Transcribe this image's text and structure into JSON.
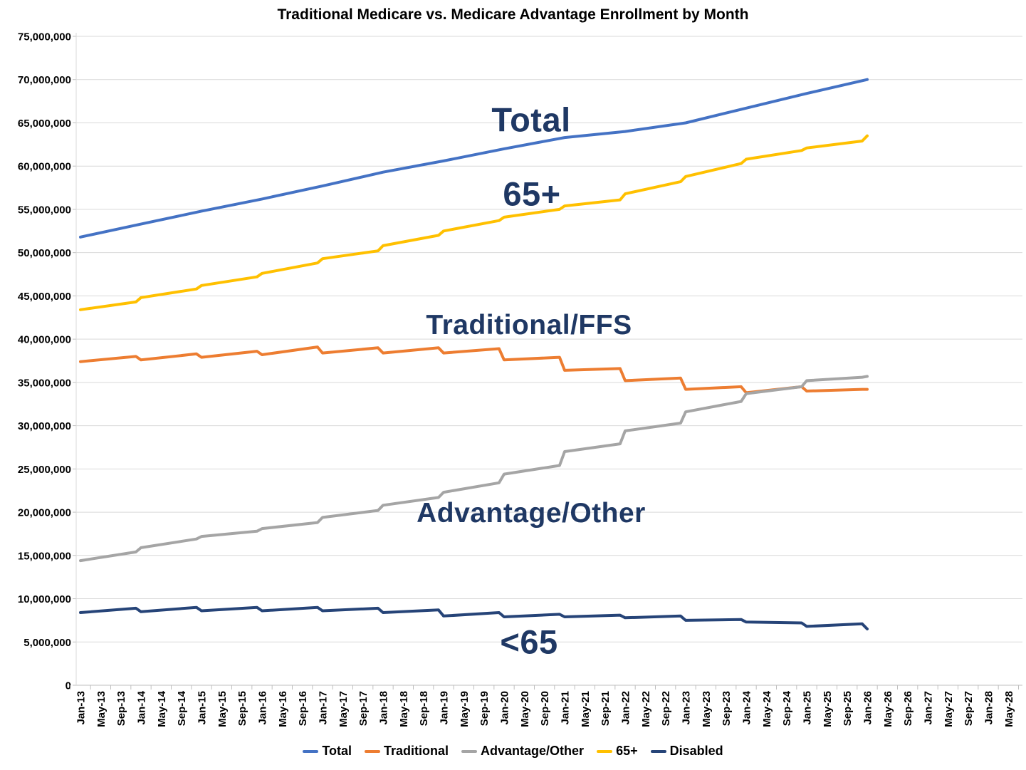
{
  "title": "Traditional Medicare vs. Medicare Advantage Enrollment by Month",
  "annotations": {
    "total": "Total",
    "age65": "65+",
    "traditional": "Traditional/FFS",
    "advantage": "Advantage/Other",
    "under65": "<65"
  },
  "legend": {
    "position": "bottom-center",
    "items": [
      {
        "id": "total",
        "label": "Total",
        "color": "#4472C4"
      },
      {
        "id": "traditional",
        "label": "Traditional",
        "color": "#ED7D31"
      },
      {
        "id": "advantage_other",
        "label": "Advantage/Other",
        "color": "#A5A5A5"
      },
      {
        "id": "age65",
        "label": "65+",
        "color": "#FFC000"
      },
      {
        "id": "disabled",
        "label": "Disabled",
        "color": "#264478"
      }
    ]
  },
  "chart_data": {
    "type": "line",
    "title": "Traditional Medicare vs. Medicare Advantage Enrollment by Month",
    "xlabel": "",
    "ylabel": "",
    "unit": "enrollees (values in millions)",
    "ylim": [
      0,
      75000000
    ],
    "grid": "horizontal",
    "x_axis_note": "monthly data from Jan-13 through Jan-26; axis labeled every 4 months out to May-28",
    "y_axis": {
      "ticks": [
        {
          "value": 0,
          "label": "0"
        },
        {
          "value": 5000000,
          "label": "5,000,000"
        },
        {
          "value": 10000000,
          "label": "10,000,000"
        },
        {
          "value": 15000000,
          "label": "15,000,000"
        },
        {
          "value": 20000000,
          "label": "20,000,000"
        },
        {
          "value": 25000000,
          "label": "25,000,000"
        },
        {
          "value": 30000000,
          "label": "30,000,000"
        },
        {
          "value": 35000000,
          "label": "35,000,000"
        },
        {
          "value": 40000000,
          "label": "40,000,000"
        },
        {
          "value": 45000000,
          "label": "45,000,000"
        },
        {
          "value": 50000000,
          "label": "50,000,000"
        },
        {
          "value": 55000000,
          "label": "55,000,000"
        },
        {
          "value": 60000000,
          "label": "60,000,000"
        },
        {
          "value": 65000000,
          "label": "65,000,000"
        },
        {
          "value": 70000000,
          "label": "70,000,000"
        },
        {
          "value": 75000000,
          "label": "75,000,000"
        }
      ]
    },
    "x_tick_labels": [
      "Jan-13",
      "May-13",
      "Sep-13",
      "Jan-14",
      "May-14",
      "Sep-14",
      "Jan-15",
      "May-15",
      "Sep-15",
      "Jan-16",
      "May-16",
      "Sep-16",
      "Jan-17",
      "May-17",
      "Sep-17",
      "Jan-18",
      "May-18",
      "Sep-18",
      "Jan-19",
      "May-19",
      "Sep-19",
      "Jan-20",
      "May-20",
      "Sep-20",
      "Jan-21",
      "May-21",
      "Sep-21",
      "Jan-22",
      "May-22",
      "Sep-22",
      "Jan-23",
      "May-23",
      "Sep-23",
      "Jan-24",
      "May-24",
      "Sep-24",
      "Jan-25",
      "May-25",
      "Sep-25",
      "Jan-26",
      "May-26",
      "Sep-26",
      "Jan-27",
      "May-27",
      "Sep-27",
      "Jan-28",
      "May-28"
    ],
    "series": [
      {
        "id": "total",
        "name": "Total",
        "color": "#4472C4",
        "points": [
          [
            "Jan-13",
            51.8
          ],
          [
            "Jan-14",
            53.3
          ],
          [
            "Jan-15",
            54.8
          ],
          [
            "Jan-16",
            56.2
          ],
          [
            "Jan-17",
            57.7
          ],
          [
            "Jan-18",
            59.3
          ],
          [
            "Jan-19",
            60.6
          ],
          [
            "Jan-20",
            62.0
          ],
          [
            "Jan-21",
            63.3
          ],
          [
            "Jan-22",
            64.0
          ],
          [
            "Jan-23",
            65.0
          ],
          [
            "Jan-24",
            66.7
          ],
          [
            "Jan-25",
            68.4
          ],
          [
            "Jan-26",
            70.0
          ]
        ]
      },
      {
        "id": "traditional",
        "name": "Traditional",
        "color": "#ED7D31",
        "points": [
          [
            "Jan-13",
            37.4
          ],
          [
            "Dec-13",
            38.0
          ],
          [
            "Jan-14",
            37.6
          ],
          [
            "Dec-14",
            38.3
          ],
          [
            "Jan-15",
            37.9
          ],
          [
            "Dec-15",
            38.6
          ],
          [
            "Jan-16",
            38.2
          ],
          [
            "Dec-16",
            39.1
          ],
          [
            "Jan-17",
            38.4
          ],
          [
            "Dec-17",
            39.0
          ],
          [
            "Jan-18",
            38.4
          ],
          [
            "Dec-18",
            39.0
          ],
          [
            "Jan-19",
            38.4
          ],
          [
            "Dec-19",
            38.9
          ],
          [
            "Jan-20",
            37.6
          ],
          [
            "Dec-20",
            37.9
          ],
          [
            "Jan-21",
            36.4
          ],
          [
            "Dec-21",
            36.6
          ],
          [
            "Jan-22",
            35.2
          ],
          [
            "Dec-22",
            35.5
          ],
          [
            "Jan-23",
            34.2
          ],
          [
            "Dec-23",
            34.5
          ],
          [
            "Jan-24",
            33.8
          ],
          [
            "Dec-24",
            34.5
          ],
          [
            "Jan-25",
            34.0
          ],
          [
            "Dec-25",
            34.2
          ],
          [
            "Jan-26",
            34.2
          ]
        ]
      },
      {
        "id": "advantage_other",
        "name": "Advantage/Other",
        "color": "#A5A5A5",
        "points": [
          [
            "Jan-13",
            14.4
          ],
          [
            "Dec-13",
            15.4
          ],
          [
            "Jan-14",
            15.9
          ],
          [
            "Dec-14",
            16.9
          ],
          [
            "Jan-15",
            17.2
          ],
          [
            "Dec-15",
            17.8
          ],
          [
            "Jan-16",
            18.1
          ],
          [
            "Dec-16",
            18.8
          ],
          [
            "Jan-17",
            19.4
          ],
          [
            "Dec-17",
            20.2
          ],
          [
            "Jan-18",
            20.8
          ],
          [
            "Dec-18",
            21.7
          ],
          [
            "Jan-19",
            22.3
          ],
          [
            "Dec-19",
            23.4
          ],
          [
            "Jan-20",
            24.4
          ],
          [
            "Dec-20",
            25.4
          ],
          [
            "Jan-21",
            27.0
          ],
          [
            "Dec-21",
            27.9
          ],
          [
            "Jan-22",
            29.4
          ],
          [
            "Dec-22",
            30.3
          ],
          [
            "Jan-23",
            31.6
          ],
          [
            "Dec-23",
            32.8
          ],
          [
            "Jan-24",
            33.7
          ],
          [
            "Dec-24",
            34.5
          ],
          [
            "Jan-25",
            35.2
          ],
          [
            "Dec-25",
            35.6
          ],
          [
            "Jan-26",
            35.7
          ]
        ]
      },
      {
        "id": "age65",
        "name": "65+",
        "color": "#FFC000",
        "points": [
          [
            "Jan-13",
            43.4
          ],
          [
            "Dec-13",
            44.3
          ],
          [
            "Jan-14",
            44.8
          ],
          [
            "Dec-14",
            45.8
          ],
          [
            "Jan-15",
            46.2
          ],
          [
            "Dec-15",
            47.2
          ],
          [
            "Jan-16",
            47.6
          ],
          [
            "Dec-16",
            48.8
          ],
          [
            "Jan-17",
            49.3
          ],
          [
            "Dec-17",
            50.2
          ],
          [
            "Jan-18",
            50.8
          ],
          [
            "Dec-18",
            52.0
          ],
          [
            "Jan-19",
            52.5
          ],
          [
            "Dec-19",
            53.7
          ],
          [
            "Jan-20",
            54.1
          ],
          [
            "Dec-20",
            55.0
          ],
          [
            "Jan-21",
            55.4
          ],
          [
            "Dec-21",
            56.1
          ],
          [
            "Jan-22",
            56.8
          ],
          [
            "Dec-22",
            58.2
          ],
          [
            "Jan-23",
            58.8
          ],
          [
            "Dec-23",
            60.3
          ],
          [
            "Jan-24",
            60.8
          ],
          [
            "Dec-24",
            61.8
          ],
          [
            "Jan-25",
            62.1
          ],
          [
            "Dec-25",
            62.9
          ],
          [
            "Jan-26",
            63.5
          ]
        ]
      },
      {
        "id": "disabled",
        "name": "Disabled",
        "color": "#264478",
        "points": [
          [
            "Jan-13",
            8.4
          ],
          [
            "Dec-13",
            8.9
          ],
          [
            "Jan-14",
            8.5
          ],
          [
            "Dec-14",
            9.0
          ],
          [
            "Jan-15",
            8.6
          ],
          [
            "Dec-15",
            9.0
          ],
          [
            "Jan-16",
            8.6
          ],
          [
            "Dec-16",
            9.0
          ],
          [
            "Jan-17",
            8.6
          ],
          [
            "Dec-17",
            8.9
          ],
          [
            "Jan-18",
            8.4
          ],
          [
            "Dec-18",
            8.7
          ],
          [
            "Jan-19",
            8.0
          ],
          [
            "Dec-19",
            8.4
          ],
          [
            "Jan-20",
            7.9
          ],
          [
            "Dec-20",
            8.2
          ],
          [
            "Jan-21",
            7.9
          ],
          [
            "Dec-21",
            8.1
          ],
          [
            "Jan-22",
            7.8
          ],
          [
            "Dec-22",
            8.0
          ],
          [
            "Jan-23",
            7.5
          ],
          [
            "Dec-23",
            7.6
          ],
          [
            "Jan-24",
            7.3
          ],
          [
            "Dec-24",
            7.2
          ],
          [
            "Jan-25",
            6.8
          ],
          [
            "Dec-25",
            7.1
          ],
          [
            "Jan-26",
            6.5
          ]
        ]
      }
    ]
  }
}
